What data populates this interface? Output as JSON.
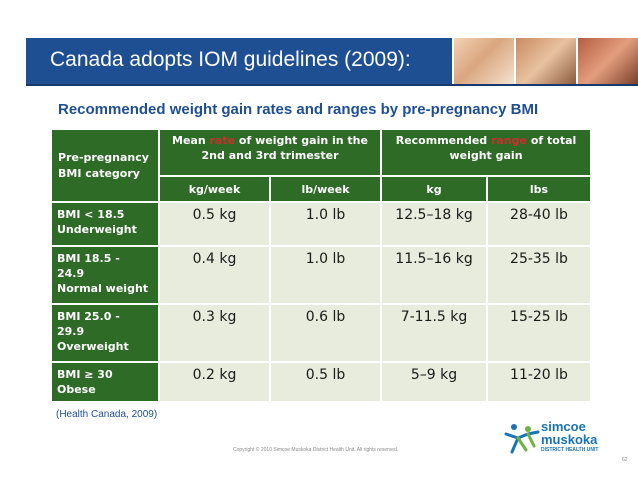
{
  "header": {
    "title": "Canada adopts IOM guidelines (2009):"
  },
  "subtitle": "Recommended weight gain rates and ranges by pre-pregnancy BMI",
  "table": {
    "category_header": "Pre-pregnancy BMI category",
    "rate_header": {
      "pre": "Mean ",
      "highlight": "rate",
      "post": " of weight gain in the 2nd and 3rd trimester"
    },
    "range_header": {
      "pre": "Recommended ",
      "highlight": "range",
      "post": " of total weight gain"
    },
    "units": [
      "kg/week",
      "lb/week",
      "kg",
      "lbs"
    ],
    "rows": [
      {
        "category": "BMI < 18.5\nUnderweight",
        "kg_week": "0.5 kg",
        "lb_week": "1.0 lb",
        "kg": "12.5–18 kg",
        "lbs": "28-40 lb"
      },
      {
        "category": "BMI 18.5 -\n24.9\nNormal weight",
        "kg_week": "0.4 kg",
        "lb_week": "1.0 lb",
        "kg": "11.5–16 kg",
        "lbs": "25-35 lb"
      },
      {
        "category": "BMI 25.0 -\n29.9\nOverweight",
        "kg_week": "0.3 kg",
        "lb_week": "0.6 lb",
        "kg": "7-11.5 kg",
        "lbs": "15-25 lb"
      },
      {
        "category": "BMI ≥ 30\nObese",
        "kg_week": "0.2 kg",
        "lb_week": "0.5 lb",
        "kg": "5–9 kg",
        "lbs": "11-20 lb"
      }
    ]
  },
  "footnote": "(Health Canada, 2009)",
  "copyright": "Copyright © 2010 Simcoe Muskoka District Health Unit. All rights reserved.",
  "logo": {
    "line1": "simcoe",
    "line2": "muskoka",
    "line3": "DISTRICT HEALTH UNIT"
  },
  "page_number": "62",
  "colors": {
    "banner": "#1f4f93",
    "table_dark": "#2e6b26",
    "table_light": "#e8ecdd",
    "highlight": "#c9302c",
    "logo_blue": "#1a73b8",
    "logo_green": "#6cb33f"
  }
}
